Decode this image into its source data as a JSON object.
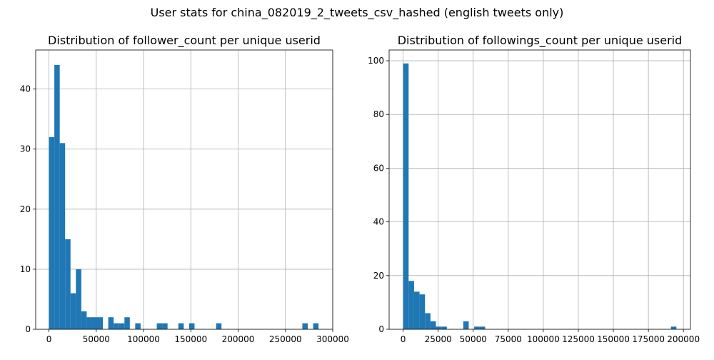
{
  "suptitle": "User stats for china_082019_2_tweets_csv_hashed (english tweets only)",
  "chart_data": [
    {
      "type": "bar",
      "title": "Distribution of follower_count per unique userid",
      "xlabel": "",
      "ylabel": "",
      "grid": true,
      "bar_color": "#1f77b4",
      "xlim": [
        -14000,
        300000
      ],
      "ylim": [
        0,
        46.5
      ],
      "xticks": [
        0,
        50000,
        100000,
        150000,
        200000,
        250000,
        300000
      ],
      "xtick_labels": [
        "0",
        "50000",
        "100000",
        "150000",
        "200000",
        "250000",
        "300000"
      ],
      "yticks": [
        0,
        10,
        20,
        30,
        40
      ],
      "ytick_labels": [
        "0",
        "10",
        "20",
        "30",
        "40"
      ],
      "bin_start": 0,
      "bin_width": 5700,
      "values": [
        32,
        44,
        31,
        15,
        6,
        10,
        3,
        2,
        2,
        2,
        0,
        2,
        1,
        1,
        2,
        0,
        1,
        0,
        0,
        0,
        1,
        1,
        0,
        0,
        1,
        0,
        1,
        0,
        0,
        0,
        0,
        1,
        0,
        0,
        0,
        0,
        0,
        0,
        0,
        0,
        0,
        0,
        0,
        0,
        0,
        0,
        0,
        1,
        0,
        1
      ]
    },
    {
      "type": "bar",
      "title": "Distribution of followings_count per unique userid",
      "xlabel": "",
      "ylabel": "",
      "grid": true,
      "bar_color": "#1f77b4",
      "xlim": [
        -10000,
        205000
      ],
      "ylim": [
        0,
        104
      ],
      "xticks": [
        0,
        25000,
        50000,
        75000,
        100000,
        125000,
        150000,
        175000,
        200000
      ],
      "xtick_labels": [
        "0",
        "25000",
        "50000",
        "75000",
        "100000",
        "125000",
        "150000",
        "175000",
        "200000"
      ],
      "yticks": [
        0,
        20,
        40,
        60,
        80,
        100
      ],
      "ytick_labels": [
        "0",
        "20",
        "40",
        "60",
        "80",
        "100"
      ],
      "bin_start": 0,
      "bin_width": 3900,
      "values": [
        99,
        18,
        14,
        13,
        6,
        3,
        1,
        1,
        0,
        0,
        0,
        3,
        0,
        1,
        1,
        0,
        0,
        0,
        0,
        0,
        0,
        0,
        0,
        0,
        0,
        0,
        0,
        0,
        0,
        0,
        0,
        0,
        0,
        0,
        0,
        0,
        0,
        0,
        0,
        0,
        0,
        0,
        0,
        0,
        0,
        0,
        0,
        0,
        0,
        1
      ]
    }
  ]
}
